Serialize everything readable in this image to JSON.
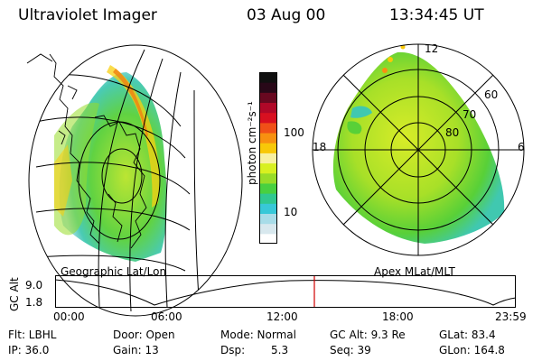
{
  "header": {
    "instrument": "Ultraviolet Imager",
    "date": "03 Aug 00",
    "time": "13:34:45 UT"
  },
  "colorbar": {
    "unit_label": "photon cm⁻²s⁻¹",
    "ticks": [
      "100",
      "10"
    ],
    "colors": [
      "#ffffff",
      "#d8e8ee",
      "#a8dce8",
      "#38c8d8",
      "#30c890",
      "#48d040",
      "#98dc28",
      "#d8f020",
      "#f8f0a0",
      "#f8c808",
      "#f89010",
      "#f05018",
      "#d81020",
      "#b00828",
      "#680820",
      "#280818",
      "#101010"
    ]
  },
  "left_panel": {
    "label": "Geographic Lat/Lon"
  },
  "right_panel": {
    "label": "Apex MLat/MLT",
    "mlt_labels": [
      "12",
      "18",
      "6"
    ],
    "mlat_labels": [
      "60",
      "70",
      "80"
    ]
  },
  "altitude_plot": {
    "ylabel": "GC Alt",
    "yticks": [
      "9.0",
      "1.8"
    ],
    "xticks": [
      "00:00",
      "06:00",
      "12:00",
      "18:00",
      "23:59"
    ],
    "marker_color": "#d00000"
  },
  "status": {
    "filter": "Flt: LBHL",
    "door": "Door: Open",
    "mode": "Mode: Normal",
    "gc_alt": "GC Alt: 9.3 Re",
    "glat": "GLat: 83.4",
    "ip": "IP: 36.0",
    "gain": "Gain: 13",
    "dsp_label": "Dsp:",
    "dsp_value": "5.3",
    "seq": "Seq: 39",
    "glon": "GLon: 164.8"
  }
}
